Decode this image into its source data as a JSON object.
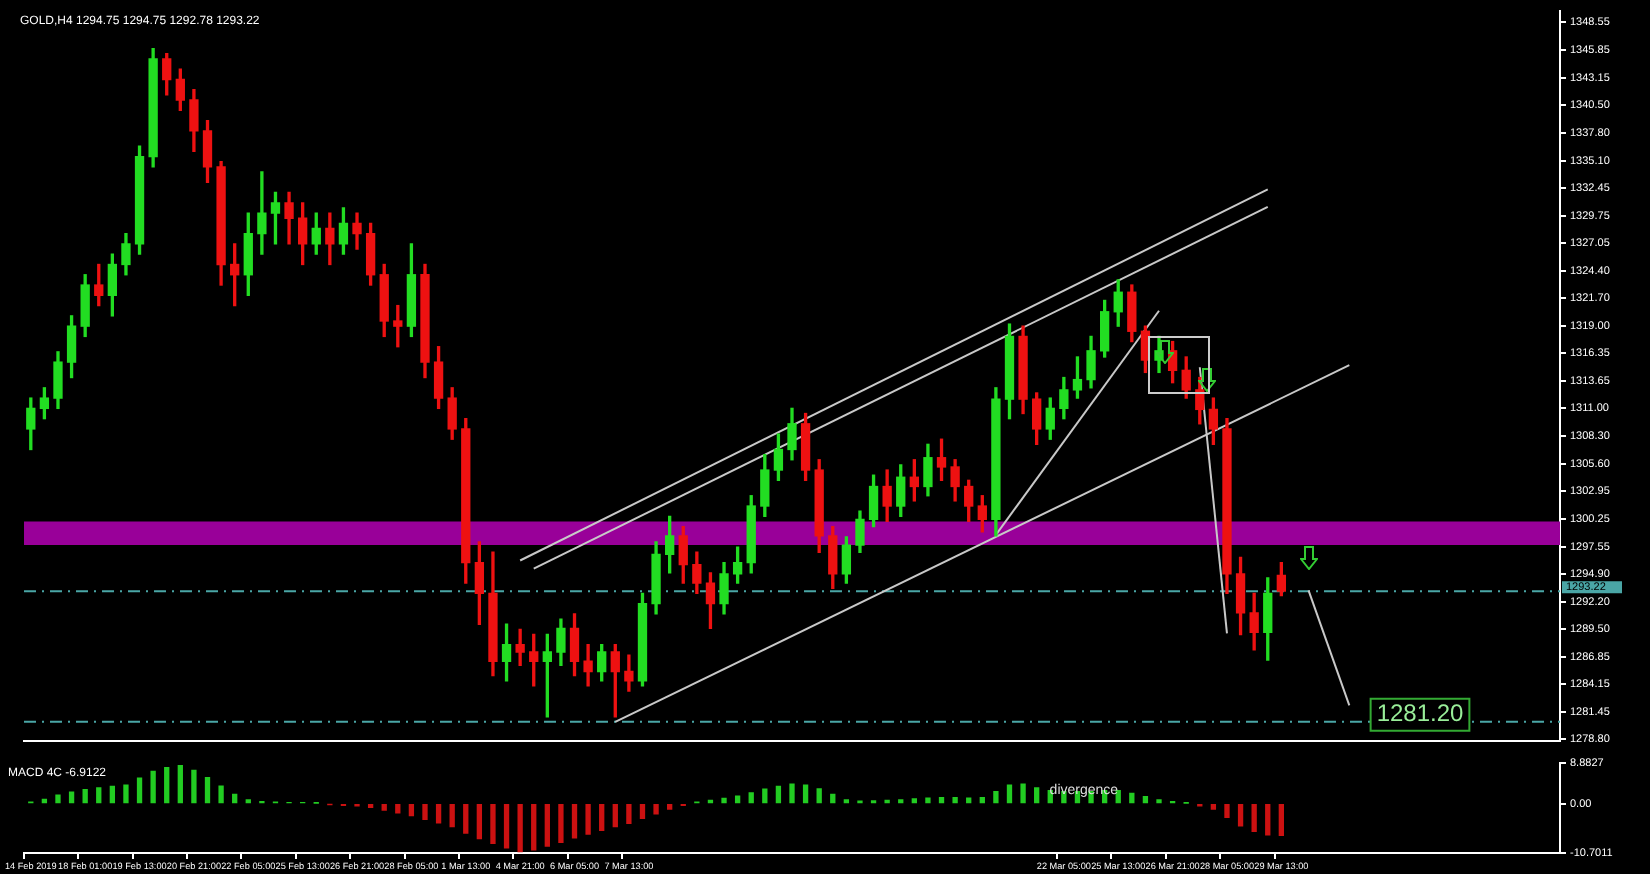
{
  "chart_data": [
    {
      "type": "candlestick",
      "title": "GOLD,H4 1294.75 1294.75 1292.78 1293.22",
      "tick_labels": "y",
      "ohlc": [
        [
          1309,
          1312,
          1307,
          1311
        ],
        [
          1311,
          1313,
          1310,
          1312
        ],
        [
          1312,
          1316.5,
          1311,
          1315.5
        ],
        [
          1315.5,
          1320,
          1314,
          1319
        ],
        [
          1319,
          1324,
          1318,
          1323
        ],
        [
          1323,
          1325,
          1321,
          1322
        ],
        [
          1322,
          1326,
          1320,
          1325
        ],
        [
          1325,
          1328,
          1324,
          1327
        ],
        [
          1327,
          1336.5,
          1326,
          1335.5
        ],
        [
          1335.5,
          1346,
          1334.5,
          1345
        ],
        [
          1345,
          1345.5,
          1341.5,
          1343
        ],
        [
          1343,
          1344,
          1340,
          1341
        ],
        [
          1341,
          1342,
          1336,
          1338
        ],
        [
          1338,
          1339,
          1333,
          1334.5
        ],
        [
          1334.5,
          1335,
          1323,
          1325
        ],
        [
          1325,
          1327,
          1321,
          1324
        ],
        [
          1324,
          1330,
          1322,
          1328
        ],
        [
          1328,
          1334,
          1326,
          1330
        ],
        [
          1330,
          1332,
          1327,
          1331
        ],
        [
          1331,
          1332,
          1327,
          1329.5
        ],
        [
          1329.5,
          1331,
          1325,
          1327
        ],
        [
          1327,
          1330,
          1326,
          1328.5
        ],
        [
          1328.5,
          1330,
          1325,
          1327
        ],
        [
          1327,
          1330.5,
          1326,
          1329
        ],
        [
          1329,
          1330,
          1326.5,
          1328
        ],
        [
          1328,
          1329,
          1323,
          1324
        ],
        [
          1324,
          1325,
          1318,
          1319.5
        ],
        [
          1319.5,
          1321,
          1317,
          1319
        ],
        [
          1319,
          1327,
          1318,
          1324
        ],
        [
          1324,
          1325,
          1314,
          1315.5
        ],
        [
          1315.5,
          1317,
          1311,
          1312
        ],
        [
          1312,
          1313,
          1308,
          1309
        ],
        [
          1309,
          1310,
          1294,
          1296
        ],
        [
          1296,
          1298,
          1290,
          1293
        ],
        [
          1293,
          1297,
          1285,
          1286.4
        ],
        [
          1286.4,
          1290,
          1284.5,
          1288
        ],
        [
          1288,
          1289.5,
          1286,
          1287.3
        ],
        [
          1287.3,
          1289,
          1284,
          1286.4
        ],
        [
          1286.4,
          1289,
          1281,
          1287.3
        ],
        [
          1287.3,
          1290.5,
          1286,
          1289.6
        ],
        [
          1289.6,
          1291,
          1285,
          1286.4
        ],
        [
          1286.4,
          1288,
          1284,
          1285.4
        ],
        [
          1285.4,
          1288,
          1284.5,
          1287.3
        ],
        [
          1287.3,
          1288,
          1281,
          1285.4
        ],
        [
          1285.4,
          1287,
          1283.5,
          1284.5
        ],
        [
          1284.5,
          1293,
          1284,
          1292
        ],
        [
          1292,
          1298,
          1291,
          1296.8
        ],
        [
          1296.8,
          1300.5,
          1295,
          1298.6
        ],
        [
          1298.6,
          1299.5,
          1294,
          1295.8
        ],
        [
          1295.8,
          1297,
          1293,
          1294
        ],
        [
          1294,
          1295,
          1289.6,
          1292
        ],
        [
          1292,
          1296,
          1291,
          1294.9
        ],
        [
          1294.9,
          1297.5,
          1294,
          1296
        ],
        [
          1296,
          1302.5,
          1295,
          1301.5
        ],
        [
          1301.5,
          1306.5,
          1300.5,
          1305
        ],
        [
          1305,
          1308.5,
          1304,
          1307
        ],
        [
          1307,
          1311,
          1306,
          1309.5
        ],
        [
          1309.5,
          1310.5,
          1304,
          1305
        ],
        [
          1305,
          1306,
          1297,
          1298.6
        ],
        [
          1298.6,
          1299.5,
          1293.5,
          1294.9
        ],
        [
          1294.9,
          1298.5,
          1294,
          1297.7
        ],
        [
          1297.7,
          1301,
          1297,
          1300.2
        ],
        [
          1300.2,
          1304.5,
          1299.5,
          1303.4
        ],
        [
          1303.4,
          1305,
          1300,
          1301.5
        ],
        [
          1301.5,
          1305.5,
          1300.5,
          1304.3
        ],
        [
          1304.3,
          1306,
          1302,
          1303.4
        ],
        [
          1303.4,
          1307.5,
          1302.5,
          1306.2
        ],
        [
          1306.2,
          1308,
          1304,
          1305.3
        ],
        [
          1305.3,
          1306,
          1302,
          1303.4
        ],
        [
          1303.4,
          1304,
          1300,
          1301.5
        ],
        [
          1301.5,
          1302.5,
          1299,
          1300.2
        ],
        [
          1300.2,
          1313,
          1298.6,
          1311.9
        ],
        [
          1311.9,
          1319.2,
          1310,
          1318
        ],
        [
          1318,
          1319,
          1310.5,
          1311.9
        ],
        [
          1311.9,
          1312.5,
          1307.5,
          1309
        ],
        [
          1309,
          1312,
          1308,
          1311
        ],
        [
          1311,
          1314,
          1310,
          1312.8
        ],
        [
          1312.8,
          1316,
          1312,
          1313.8
        ],
        [
          1313.8,
          1318,
          1313,
          1316.6
        ],
        [
          1316.6,
          1321.5,
          1316,
          1320.4
        ],
        [
          1320.4,
          1323.5,
          1319,
          1322.3
        ],
        [
          1322.3,
          1323,
          1317.5,
          1318.5
        ],
        [
          1318.5,
          1319,
          1314.5,
          1315.7
        ],
        [
          1315.7,
          1318,
          1314.5,
          1316.6
        ],
        [
          1316.6,
          1317.5,
          1313.5,
          1314.7
        ],
        [
          1314.7,
          1316,
          1312,
          1312.8
        ],
        [
          1312.8,
          1314,
          1309.5,
          1310.9
        ],
        [
          1310.9,
          1312,
          1307.5,
          1309
        ],
        [
          1309,
          1310,
          1293,
          1294.9
        ],
        [
          1294.9,
          1296.5,
          1289,
          1291.1
        ],
        [
          1291.1,
          1293,
          1287.5,
          1289.2
        ],
        [
          1289.2,
          1294.5,
          1286.5,
          1293
        ],
        [
          1294.75,
          1296,
          1292.78,
          1293.22
        ],
        null,
        null,
        null,
        null,
        null,
        null,
        null,
        null,
        null,
        null,
        null,
        null,
        null,
        null,
        null,
        null,
        null,
        null,
        null,
        null
      ],
      "series": [
        {
          "type": "line",
          "color": "#c8c8c8",
          "values": [
            null,
            null,
            null,
            null,
            null,
            null,
            null,
            null,
            null,
            null,
            null,
            null,
            null,
            null,
            null,
            null,
            null,
            null,
            null,
            null,
            null,
            null,
            null,
            null,
            null,
            null,
            null,
            null,
            null,
            null,
            null,
            null,
            null,
            null,
            null,
            null,
            1296.2,
            null,
            null,
            null,
            null,
            null,
            null,
            null,
            null,
            null,
            null,
            null,
            null,
            null,
            null,
            null,
            null,
            null,
            null,
            null,
            null,
            null,
            null,
            null,
            null,
            null,
            null,
            null,
            null,
            null,
            null,
            null,
            null,
            null,
            null,
            null,
            null,
            null,
            null,
            null,
            null,
            null,
            null,
            null,
            null,
            null,
            null,
            null,
            null,
            null,
            null,
            null,
            null,
            null,
            null,
            1332.3,
            null,
            null,
            null,
            null,
            null,
            null,
            null,
            null,
            null,
            null,
            null,
            null,
            null,
            null,
            null,
            null,
            null,
            null,
            null,
            null,
            null
          ]
        },
        {
          "type": "line",
          "color": "#c8c8c8",
          "values": [
            null,
            null,
            null,
            null,
            null,
            null,
            null,
            null,
            null,
            null,
            null,
            null,
            null,
            null,
            null,
            null,
            null,
            null,
            null,
            null,
            null,
            null,
            null,
            null,
            null,
            null,
            null,
            null,
            null,
            null,
            null,
            null,
            null,
            null,
            null,
            null,
            null,
            1295.4,
            null,
            null,
            null,
            null,
            null,
            null,
            null,
            null,
            null,
            null,
            null,
            null,
            null,
            null,
            null,
            null,
            null,
            null,
            null,
            null,
            null,
            null,
            null,
            null,
            null,
            null,
            null,
            null,
            null,
            null,
            null,
            null,
            null,
            null,
            null,
            null,
            null,
            null,
            null,
            null,
            null,
            null,
            null,
            null,
            null,
            null,
            null,
            null,
            null,
            null,
            null,
            null,
            null,
            1330.6,
            null,
            null,
            null,
            null,
            null,
            null,
            null,
            null,
            null,
            null,
            null,
            null,
            null,
            null,
            null,
            null,
            null,
            null,
            null,
            null,
            null
          ]
        },
        {
          "type": "line",
          "color": "#c8c8c8",
          "values": [
            null,
            null,
            null,
            null,
            null,
            null,
            null,
            null,
            null,
            null,
            null,
            null,
            null,
            null,
            null,
            null,
            null,
            null,
            null,
            null,
            null,
            null,
            null,
            null,
            null,
            null,
            null,
            null,
            null,
            null,
            null,
            null,
            null,
            null,
            null,
            null,
            null,
            null,
            null,
            null,
            null,
            null,
            null,
            1280.5,
            null,
            null,
            null,
            null,
            null,
            null,
            null,
            null,
            null,
            null,
            null,
            null,
            null,
            null,
            null,
            null,
            null,
            null,
            null,
            null,
            null,
            null,
            null,
            null,
            null,
            null,
            null,
            null,
            null,
            null,
            null,
            null,
            null,
            null,
            null,
            null,
            null,
            null,
            null,
            null,
            null,
            null,
            null,
            null,
            null,
            null,
            null,
            null,
            null,
            null,
            null,
            null,
            null,
            1315.2,
            null,
            null,
            null,
            null,
            null,
            null,
            null,
            null,
            null,
            null,
            null,
            null,
            null,
            null,
            null
          ]
        },
        {
          "type": "line",
          "color": "#c8c8c8",
          "values": [
            null,
            null,
            null,
            null,
            null,
            null,
            null,
            null,
            null,
            null,
            null,
            null,
            null,
            null,
            null,
            null,
            null,
            null,
            null,
            null,
            null,
            null,
            null,
            null,
            null,
            null,
            null,
            null,
            null,
            null,
            null,
            null,
            null,
            null,
            null,
            null,
            null,
            null,
            null,
            null,
            null,
            null,
            null,
            null,
            null,
            null,
            null,
            null,
            null,
            null,
            null,
            null,
            null,
            null,
            null,
            null,
            null,
            null,
            null,
            null,
            null,
            null,
            null,
            null,
            null,
            null,
            null,
            null,
            null,
            null,
            null,
            1298.7,
            null,
            null,
            null,
            null,
            null,
            null,
            null,
            null,
            null,
            null,
            null,
            1320.5,
            null,
            null,
            null,
            null,
            null,
            null,
            null,
            null,
            null,
            null,
            null,
            null,
            null,
            null,
            null,
            null,
            null,
            null,
            null,
            null,
            null,
            null,
            null,
            null,
            null,
            null,
            null,
            null,
            null
          ]
        },
        {
          "type": "line",
          "color": "#c8c8c8",
          "values": [
            null,
            null,
            null,
            null,
            null,
            null,
            null,
            null,
            null,
            null,
            null,
            null,
            null,
            null,
            null,
            null,
            null,
            null,
            null,
            null,
            null,
            null,
            null,
            null,
            null,
            null,
            null,
            null,
            null,
            null,
            null,
            null,
            null,
            null,
            null,
            null,
            null,
            null,
            null,
            null,
            null,
            null,
            null,
            null,
            null,
            null,
            null,
            null,
            null,
            null,
            null,
            null,
            null,
            null,
            null,
            null,
            null,
            null,
            null,
            null,
            null,
            null,
            null,
            null,
            null,
            null,
            null,
            null,
            null,
            null,
            null,
            null,
            null,
            null,
            null,
            null,
            null,
            null,
            null,
            null,
            null,
            null,
            null,
            null,
            null,
            null,
            1315.0,
            null,
            1289.1,
            null,
            null,
            null,
            null,
            null,
            null,
            null,
            null,
            null,
            null,
            null,
            null,
            null,
            null,
            null,
            null,
            null,
            null,
            null,
            null,
            null,
            null,
            null,
            null
          ]
        },
        {
          "type": "line",
          "color": "#c8c8c8",
          "values": [
            null,
            null,
            null,
            null,
            null,
            null,
            null,
            null,
            null,
            null,
            null,
            null,
            null,
            null,
            null,
            null,
            null,
            null,
            null,
            null,
            null,
            null,
            null,
            null,
            null,
            null,
            null,
            null,
            null,
            null,
            null,
            null,
            null,
            null,
            null,
            null,
            null,
            null,
            null,
            null,
            null,
            null,
            null,
            null,
            null,
            null,
            null,
            null,
            null,
            null,
            null,
            null,
            null,
            null,
            null,
            null,
            null,
            null,
            null,
            null,
            null,
            null,
            null,
            null,
            null,
            null,
            null,
            null,
            null,
            null,
            null,
            null,
            null,
            null,
            null,
            null,
            null,
            null,
            null,
            null,
            null,
            null,
            null,
            null,
            null,
            null,
            null,
            null,
            null,
            null,
            null,
            null,
            null,
            null,
            1293.3,
            null,
            null,
            1282.1,
            null,
            null,
            null,
            null,
            null,
            null,
            null,
            null,
            null,
            null,
            null,
            null,
            null,
            null,
            null
          ]
        }
      ],
      "ylim": [
        1278.6,
        1349.7
      ],
      "yticks": [
        {
          "value": 1348.55,
          "label": "1348.55"
        },
        {
          "value": 1345.85,
          "label": "1345.85"
        },
        {
          "value": 1343.15,
          "label": "1343.15"
        },
        {
          "value": 1340.5,
          "label": "1340.50"
        },
        {
          "value": 1337.8,
          "label": "1337.80"
        },
        {
          "value": 1335.1,
          "label": "1335.10"
        },
        {
          "value": 1332.45,
          "label": "1332.45"
        },
        {
          "value": 1329.75,
          "label": "1329.75"
        },
        {
          "value": 1327.05,
          "label": "1327.05"
        },
        {
          "value": 1324.4,
          "label": "1324.40"
        },
        {
          "value": 1321.7,
          "label": "1321.70"
        },
        {
          "value": 1319,
          "label": "1319.00"
        },
        {
          "value": 1316.35,
          "label": "1316.35"
        },
        {
          "value": 1313.65,
          "label": "1313.65"
        },
        {
          "value": 1311,
          "label": "1311.00"
        },
        {
          "value": 1308.3,
          "label": "1308.30"
        },
        {
          "value": 1305.6,
          "label": "1305.60"
        },
        {
          "value": 1302.95,
          "label": "1302.95"
        },
        {
          "value": 1300.25,
          "label": "1300.25"
        },
        {
          "value": 1297.55,
          "label": "1297.55"
        },
        {
          "value": 1294.9,
          "label": "1294.90"
        },
        {
          "value": 1292.2,
          "label": "1292.20"
        },
        {
          "value": 1289.5,
          "label": "1289.50"
        },
        {
          "value": 1286.85,
          "label": "1286.85"
        },
        {
          "value": 1284.15,
          "label": "1284.15"
        },
        {
          "value": 1281.45,
          "label": "1281.45"
        },
        {
          "value": 1278.8,
          "label": "1278.80"
        }
      ],
      "ref_lines": [
        {
          "axis": "y",
          "value": 1293.22,
          "label": "1293.22",
          "color": "#4aa6a6",
          "line_style": "dashed"
        },
        {
          "axis": "y",
          "value": 1280.5,
          "color": "#4aa6a6",
          "line_style": "dashed"
        }
      ],
      "bands": [
        {
          "axis": "y",
          "from": 1297.7,
          "to": 1300.0,
          "color": "#990099"
        }
      ],
      "annotations": [
        {
          "text": "1281.20",
          "y": 1281.2
        }
      ]
    },
    {
      "type": "bar",
      "title": "MACD 4C -6.9122",
      "categories": [
        "14 Feb 2019",
        null,
        null,
        null,
        "18 Feb 01:00",
        null,
        null,
        null,
        "19 Feb 13:00",
        null,
        null,
        null,
        "20 Feb 21:00",
        null,
        null,
        null,
        "22 Feb 05:00",
        null,
        null,
        null,
        "25 Feb 13:00",
        null,
        null,
        null,
        "26 Feb 21:00",
        null,
        null,
        null,
        "28 Feb 05:00",
        null,
        null,
        null,
        "1 Mar 13:00",
        null,
        null,
        null,
        "4 Mar 21:00",
        null,
        null,
        null,
        "6 Mar 05:00",
        null,
        null,
        null,
        "7 Mar 13:00",
        null,
        null,
        null,
        null,
        null,
        null,
        null,
        null,
        null,
        null,
        null,
        null,
        null,
        null,
        null,
        null,
        null,
        null,
        null,
        null,
        null,
        null,
        null,
        null,
        null,
        null,
        null,
        null,
        null,
        null,
        null,
        "22 Mar 05:00",
        null,
        null,
        null,
        "25 Mar 13:00",
        null,
        null,
        null,
        "26 Mar 21:00",
        null,
        null,
        null,
        "28 Mar 05:00",
        null,
        null,
        null,
        "29 Mar 13:00",
        null,
        null,
        null,
        null,
        null,
        null,
        null,
        null,
        null,
        null,
        null,
        null,
        null,
        null,
        null,
        null,
        null,
        null,
        null,
        null
      ],
      "values": [
        0.3,
        0.9,
        1.8,
        2.5,
        3.0,
        3.4,
        3.7,
        4.0,
        5.5,
        7.0,
        7.8,
        8.2,
        7.2,
        5.6,
        3.8,
        2.0,
        0.8,
        0.4,
        0.3,
        0.2,
        0.2,
        0.1,
        -0.2,
        -0.4,
        -0.5,
        -0.8,
        -1.4,
        -2.0,
        -2.6,
        -3.4,
        -4.2,
        -5.0,
        -6.4,
        -7.6,
        -8.6,
        -9.6,
        -10.4,
        -10.0,
        -9.2,
        -8.4,
        -7.4,
        -6.6,
        -5.8,
        -5.0,
        -4.3,
        -3.2,
        -2.2,
        -1.2,
        -0.4,
        0.3,
        0.7,
        1.1,
        1.6,
        2.3,
        3.1,
        3.7,
        4.2,
        4.0,
        3.2,
        2.0,
        0.8,
        0.5,
        0.6,
        0.7,
        0.8,
        1.0,
        1.2,
        1.3,
        1.3,
        1.2,
        1.3,
        2.6,
        4.0,
        4.2,
        3.4,
        2.8,
        2.6,
        2.6,
        2.6,
        2.8,
        2.8,
        2.2,
        1.5,
        0.8,
        0.4,
        0.1,
        -0.5,
        -1.2,
        -3.0,
        -4.8,
        -6.0,
        -6.8,
        -6.9,
        null,
        null,
        null,
        null,
        null,
        null,
        null,
        null,
        null,
        null,
        null,
        null,
        null,
        null,
        null,
        null,
        null,
        null,
        null,
        null
      ],
      "colors": [
        "#22cc22",
        "#22cc22",
        "#22cc22",
        "#22cc22",
        "#22cc22",
        "#22cc22",
        "#22cc22",
        "#22cc22",
        "#22cc22",
        "#22cc22",
        "#22cc22",
        "#22cc22",
        "#22cc22",
        "#22cc22",
        "#22cc22",
        "#22cc22",
        "#22cc22",
        "#22cc22",
        "#22cc22",
        "#22cc22",
        "#22cc22",
        "#22cc22",
        "#cc1111",
        "#cc1111",
        "#cc1111",
        "#cc1111",
        "#cc1111",
        "#cc1111",
        "#cc1111",
        "#cc1111",
        "#cc1111",
        "#cc1111",
        "#cc1111",
        "#cc1111",
        "#cc1111",
        "#cc1111",
        "#cc1111",
        "#cc1111",
        "#cc1111",
        "#cc1111",
        "#cc1111",
        "#cc1111",
        "#cc1111",
        "#cc1111",
        "#cc1111",
        "#cc1111",
        "#cc1111",
        "#cc1111",
        "#cc1111",
        "#22cc22",
        "#22cc22",
        "#22cc22",
        "#22cc22",
        "#22cc22",
        "#22cc22",
        "#22cc22",
        "#22cc22",
        "#22cc22",
        "#22cc22",
        "#22cc22",
        "#22cc22",
        "#22cc22",
        "#22cc22",
        "#22cc22",
        "#22cc22",
        "#22cc22",
        "#22cc22",
        "#22cc22",
        "#22cc22",
        "#22cc22",
        "#22cc22",
        "#22cc22",
        "#22cc22",
        "#22cc22",
        "#22cc22",
        "#22cc22",
        "#22cc22",
        "#22cc22",
        "#22cc22",
        "#22cc22",
        "#22cc22",
        "#22cc22",
        "#22cc22",
        "#22cc22",
        "#22cc22",
        "#22cc22",
        "#cc1111",
        "#cc1111",
        "#cc1111",
        "#cc1111",
        "#cc1111",
        "#cc1111",
        "#cc1111",
        null,
        null,
        null,
        null,
        null,
        null,
        null,
        null,
        null,
        null,
        null,
        null,
        null,
        null,
        null,
        null,
        null,
        null,
        null,
        null
      ],
      "ylim": [
        -10.7011,
        8.8827
      ],
      "yticks": [
        {
          "value": 8.8827,
          "label": "8.8827"
        },
        {
          "value": 0,
          "label": "0.00"
        },
        {
          "value": -10.7011,
          "label": "-10.7011"
        }
      ],
      "annotations": [
        {
          "text": "divergence",
          "y": 2.9
        }
      ]
    }
  ]
}
